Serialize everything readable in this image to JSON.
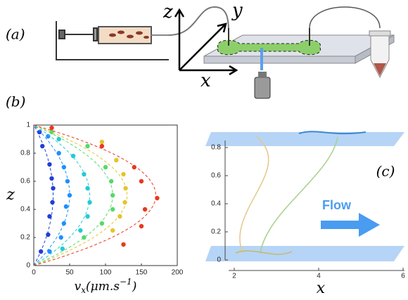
{
  "panel_labels": {
    "a": "(a)",
    "b": "(b)"
  },
  "schematic": {
    "z": "z",
    "y": "y",
    "x": "x"
  },
  "chart_data": [
    {
      "type": "scatter",
      "ylabel": "z",
      "xlabel": {
        "base": "v",
        "sub": "x",
        "mid": "(μm.s",
        "sup": "−1",
        "end": ")"
      },
      "xlim": [
        0,
        200
      ],
      "xticks": [
        0,
        50,
        100,
        150,
        200
      ],
      "ylim": [
        0,
        1
      ],
      "yticks": [
        0,
        0.2,
        0.4,
        0.6,
        0.8,
        1
      ],
      "series": [
        {
          "color": "#1f3fd8",
          "fit_peak": 27,
          "x": [
            8,
            12,
            22,
            25,
            27,
            26,
            22,
            20,
            10
          ],
          "y": [
            0.95,
            0.85,
            0.72,
            0.62,
            0.55,
            0.45,
            0.35,
            0.22,
            0.1
          ]
        },
        {
          "color": "#1e8fff",
          "fit_peak": 50,
          "x": [
            20,
            35,
            42,
            47,
            50,
            45,
            42,
            38,
            22
          ],
          "y": [
            0.92,
            0.8,
            0.7,
            0.6,
            0.5,
            0.42,
            0.3,
            0.2,
            0.1
          ]
        },
        {
          "color": "#22ccd2",
          "fit_peak": 78,
          "x": [
            35,
            55,
            70,
            75,
            78,
            75,
            65,
            40
          ],
          "y": [
            0.9,
            0.78,
            0.65,
            0.55,
            0.45,
            0.35,
            0.25,
            0.12
          ]
        },
        {
          "color": "#55d96a",
          "fit_peak": 110,
          "x": [
            25,
            75,
            100,
            108,
            110,
            110,
            95,
            70
          ],
          "y": [
            0.95,
            0.85,
            0.7,
            0.6,
            0.5,
            0.4,
            0.3,
            0.2
          ]
        },
        {
          "color": "#e3c52a",
          "fit_peak": 130,
          "x": [
            95,
            115,
            125,
            128,
            127,
            120,
            110
          ],
          "y": [
            0.88,
            0.75,
            0.65,
            0.55,
            0.45,
            0.35,
            0.25
          ]
        },
        {
          "color": "#e8391e",
          "fit_peak": 170,
          "x": [
            25,
            95,
            140,
            150,
            172,
            155,
            150,
            125
          ],
          "y": [
            0.98,
            0.85,
            0.7,
            0.6,
            0.48,
            0.4,
            0.28,
            0.15
          ]
        }
      ]
    },
    {
      "type": "trajectory3d",
      "label": "(c)",
      "annotation": "Flow",
      "xlabel": "x",
      "xlim": [
        2,
        6
      ],
      "xticks": [
        2,
        4,
        6
      ],
      "zlim": [
        0,
        0.8
      ],
      "zticks": [
        0,
        0.2,
        0.4,
        0.6,
        0.8
      ]
    }
  ]
}
